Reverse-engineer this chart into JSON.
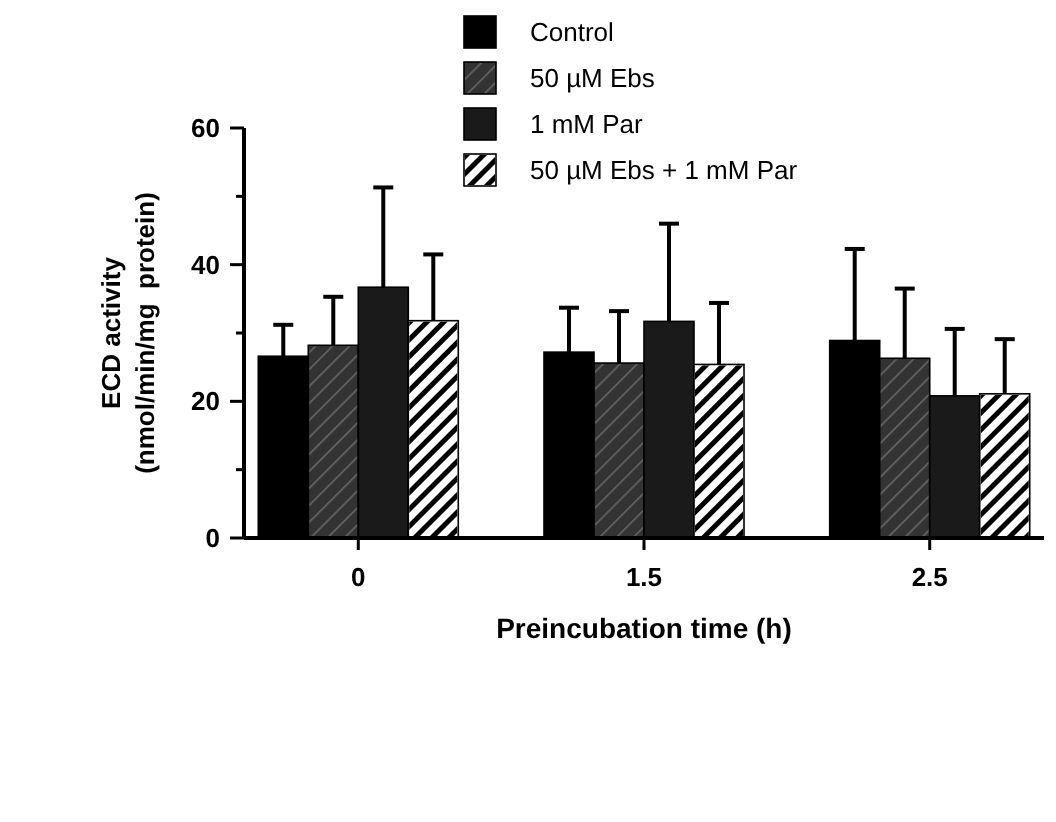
{
  "chart_data": {
    "type": "bar",
    "xlabel": "Preincubation time (h)",
    "ylabel": "ECD activity\n(nmol/min/mg  protein)",
    "categories": [
      "0",
      "1.5",
      "2.5"
    ],
    "ylim": [
      0,
      60
    ],
    "yticks": [
      0,
      {
        "value": 10,
        "label": null
      },
      20,
      {
        "value": 30,
        "label": null
      },
      40,
      {
        "value": 50,
        "label": null
      },
      60
    ],
    "legend": "top right",
    "series": [
      {
        "name": "Control",
        "color": "#000000",
        "values": [
          26.6,
          27.2,
          28.9
        ],
        "errors": [
          [
            26.6,
            31.2
          ],
          [
            27.2,
            33.7
          ],
          [
            28.9,
            42.3
          ]
        ]
      },
      {
        "name": "50 µM Ebs",
        "color": "#333333",
        "values": [
          28.2,
          25.6,
          26.3
        ],
        "errors": [
          [
            28.2,
            35.3
          ],
          [
            25.6,
            33.2
          ],
          [
            26.3,
            36.5
          ]
        ]
      },
      {
        "name": "1 mM Par",
        "color": "#1a1a1a",
        "values": [
          36.7,
          31.7,
          20.8
        ],
        "errors": [
          [
            36.7,
            51.3
          ],
          [
            31.7,
            46.0
          ],
          [
            20.8,
            30.6
          ]
        ]
      },
      {
        "name": "50 µM Ebs + 1 mM Par",
        "color": "#ffffff",
        "values": [
          31.8,
          25.4,
          21.1
        ],
        "errors": [
          [
            31.8,
            41.5
          ],
          [
            25.4,
            34.4
          ],
          [
            21.1,
            29.1
          ]
        ]
      }
    ]
  }
}
